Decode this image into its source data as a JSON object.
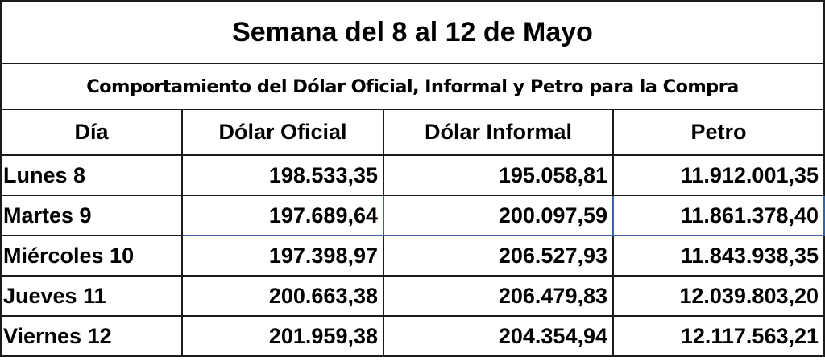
{
  "title": "Semana del 8 al 12 de Mayo",
  "subtitle": "Comportamiento del Dólar Oficial, Informal y Petro para la Compra",
  "columns": [
    "Día",
    "Dólar Oficial",
    "Dólar Informal",
    "Petro"
  ],
  "rows": [
    {
      "day": "Lunes 8",
      "oficial": "198.533,35",
      "informal": "195.058,81",
      "petro": "11.912.001,35"
    },
    {
      "day": "Martes 9",
      "oficial": "197.689,64",
      "informal": "200.097,59",
      "petro": "11.861.378,40"
    },
    {
      "day": "Miércoles 10",
      "oficial": "197.398,97",
      "informal": "206.527,93",
      "petro": "11.843.938,35"
    },
    {
      "day": "Jueves 11",
      "oficial": "200.663,38",
      "informal": "206.479,83",
      "petro": "12.039.803,20"
    },
    {
      "day": "Viernes 12",
      "oficial": "201.959,38",
      "informal": "204.354,94",
      "petro": "12.117.563,21"
    }
  ],
  "selection_color": "#3a63a8"
}
